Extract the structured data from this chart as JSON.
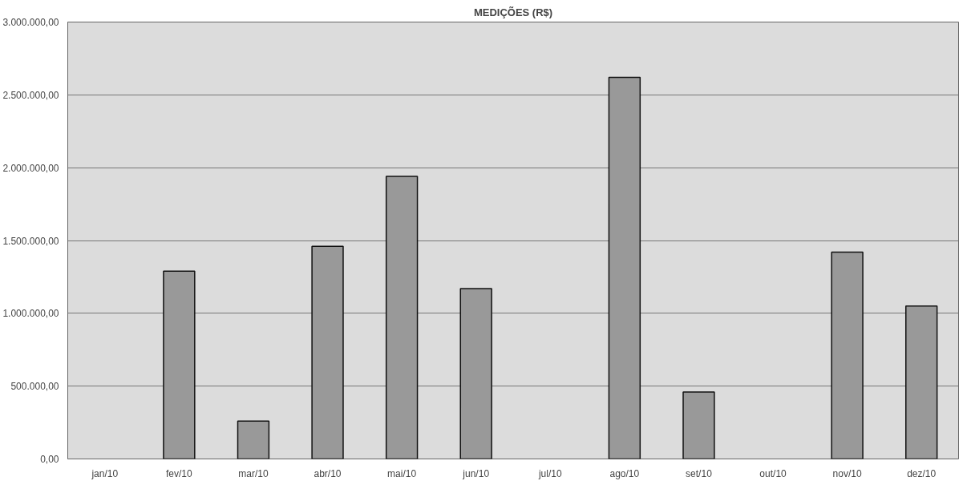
{
  "chart_data": {
    "type": "bar",
    "title": "MEDIÇÕES (R$)",
    "categories": [
      "jan/10",
      "fev/10",
      "mar/10",
      "abr/10",
      "mai/10",
      "jun/10",
      "jul/10",
      "ago/10",
      "set/10",
      "out/10",
      "nov/10",
      "dez/10"
    ],
    "values": [
      null,
      1290000,
      260000,
      1460000,
      1940000,
      1170000,
      null,
      2620000,
      460000,
      null,
      1420000,
      1050000
    ],
    "color": "#999999",
    "ylim": [
      0,
      3000000
    ],
    "yticks": [
      {
        "value": 0,
        "label": "0,00"
      },
      {
        "value": 500000,
        "label": "500.000,00"
      },
      {
        "value": 1000000,
        "label": "1.000.000,00"
      },
      {
        "value": 1500000,
        "label": "1.500.000,00"
      },
      {
        "value": 2000000,
        "label": "2.000.000,00"
      },
      {
        "value": 2500000,
        "label": "2.500.000,00"
      },
      {
        "value": 3000000,
        "label": "3.000.000,00"
      }
    ],
    "grid": "y"
  }
}
